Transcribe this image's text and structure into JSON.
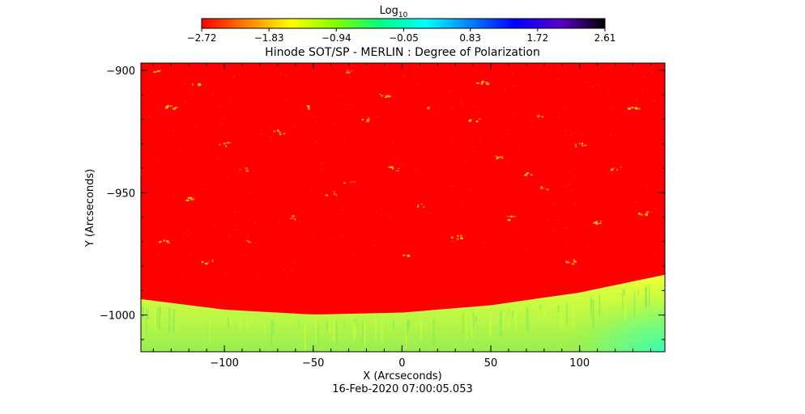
{
  "chart_data": {
    "type": "heatmap",
    "title": "Hinode SOT/SP - MERLIN : Degree of Polarization",
    "xlabel": "X (Arcseconds)",
    "ylabel": "Y (Arcseconds)",
    "timestamp": "16-Feb-2020 07:00:05.053",
    "xlim": [
      -147,
      148
    ],
    "ylim": [
      -1015,
      -897
    ],
    "x_ticks": [
      {
        "value": -100,
        "label": "−100"
      },
      {
        "value": -50,
        "label": "−50"
      },
      {
        "value": 0,
        "label": "0"
      },
      {
        "value": 50,
        "label": "50"
      },
      {
        "value": 100,
        "label": "100"
      }
    ],
    "y_ticks": [
      {
        "value": -900,
        "label": "−900"
      },
      {
        "value": -950,
        "label": "−950"
      },
      {
        "value": -1000,
        "label": "−1000"
      }
    ],
    "colorbar": {
      "label_base": "Log",
      "label_sub": "10",
      "scale": "log10",
      "range": [
        -2.72,
        2.61
      ],
      "ticks": [
        {
          "value": -2.72,
          "label": "−2.72"
        },
        {
          "value": -1.83,
          "label": "−1.83"
        },
        {
          "value": -0.94,
          "label": "−0.94"
        },
        {
          "value": -0.05,
          "label": "−0.05"
        },
        {
          "value": 0.83,
          "label": "0.83"
        },
        {
          "value": 1.72,
          "label": "1.72"
        },
        {
          "value": 2.61,
          "label": "2.61"
        }
      ],
      "stops": [
        "#ff0000",
        "#ff7f00",
        "#ffff00",
        "#7fff00",
        "#00ff7f",
        "#00ffff",
        "#007fff",
        "#0000ff",
        "#5a00c8",
        "#000000"
      ]
    },
    "limb": {
      "x": [
        -147,
        -100,
        -50,
        0,
        50,
        100,
        148
      ],
      "y": [
        -993.5,
        -997.8,
        -999.8,
        -999.0,
        -996.0,
        -990.8,
        -983.5
      ]
    },
    "colors": {
      "disk": "#ff0000",
      "limb_bright": "#f4ff30",
      "off_limb": "#9cf04a",
      "off_limb_far": "#40ffa0"
    },
    "grid": false,
    "legend": "colorbar top"
  }
}
